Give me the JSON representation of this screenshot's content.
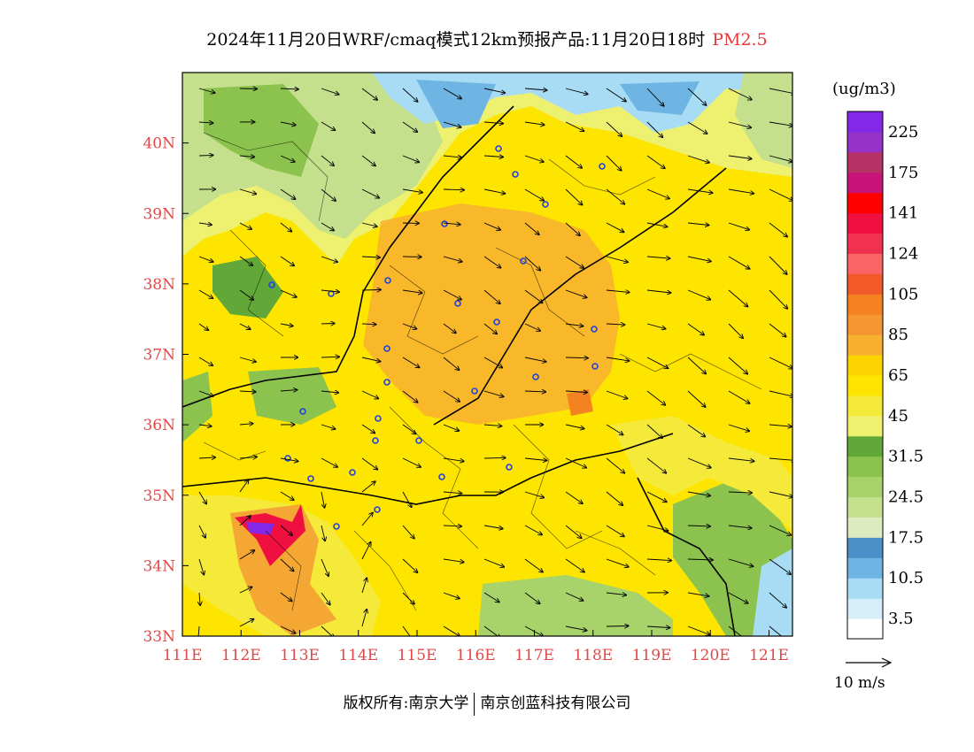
{
  "title": {
    "main": "2024年11月20日WRF/cmaq模式12km预报产品:11月20日18时",
    "species": "PM2.5",
    "species_color": "#e83a3a"
  },
  "map": {
    "lon_range": [
      111,
      121.4
    ],
    "lat_range": [
      33,
      41
    ],
    "lon_ticks": [
      "111E",
      "112E",
      "113E",
      "114E",
      "115E",
      "116E",
      "117E",
      "118E",
      "119E",
      "120E",
      "121E"
    ],
    "lat_ticks": [
      "33N",
      "34N",
      "35N",
      "36N",
      "37N",
      "38N",
      "39N",
      "40N"
    ],
    "tick_color": "#e04848"
  },
  "colorbar": {
    "unit": "(ug/m3)",
    "colors": [
      "#ffffff",
      "#d6eefa",
      "#a8dcf4",
      "#6fb5e4",
      "#4a90c8",
      "#dcebc0",
      "#c4e08c",
      "#a8d26a",
      "#8cc24e",
      "#62a838",
      "#eef070",
      "#f5e93a",
      "#fde500",
      "#fdd400",
      "#f8b030",
      "#f59632",
      "#f58220",
      "#f25a2a",
      "#fa6464",
      "#f03250",
      "#f01040",
      "#ff0000",
      "#c81478",
      "#b43264",
      "#9632c8",
      "#8228e6"
    ],
    "labels": [
      "3.5",
      "10.5",
      "17.5",
      "24.5",
      "31.5",
      "45",
      "65",
      "85",
      "105",
      "124",
      "141",
      "175",
      "225"
    ]
  },
  "wind_ref": {
    "label": "10 m/s"
  },
  "footer": {
    "left": "版权所有:南京大学",
    "right": "南京创蓝科技有限公司"
  }
}
